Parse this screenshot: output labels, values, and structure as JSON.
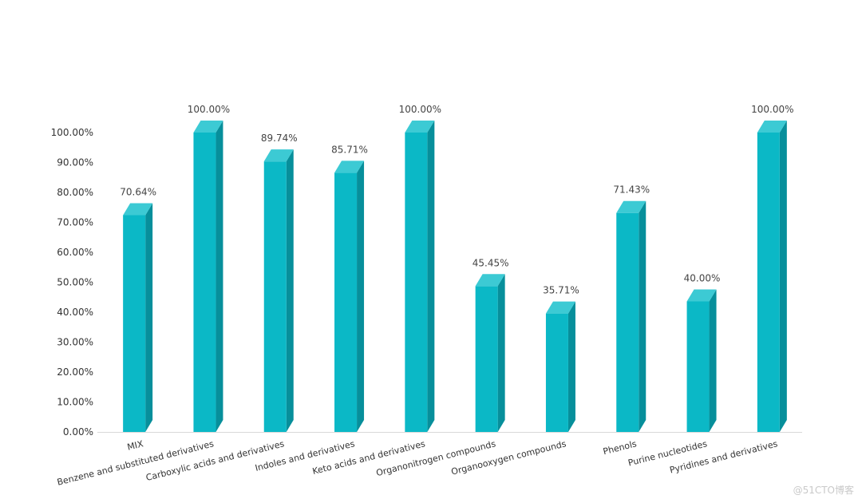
{
  "chart_data": {
    "type": "bar",
    "title": "",
    "xlabel": "",
    "ylabel": "",
    "categories": [
      "MIX",
      "Benzene and substituted derivatives",
      "Carboxylic acids and derivatives",
      "Indoles and derivatives",
      "Keto acids and derivatives",
      "Organonitrogen compounds",
      "Organooxygen compounds",
      "Phenols",
      "Purine nucleotides",
      "Pyridines and derivatives"
    ],
    "values": [
      70.64,
      100.0,
      89.74,
      85.71,
      100.0,
      45.45,
      35.71,
      71.43,
      40.0,
      100.0
    ],
    "data_labels": [
      "70.64%",
      "100.00%",
      "89.74%",
      "85.71%",
      "100.00%",
      "45.45%",
      "35.71%",
      "71.43%",
      "40.00%",
      "100.00%"
    ],
    "y_ticks": [
      "0.00%",
      "10.00%",
      "20.00%",
      "30.00%",
      "40.00%",
      "50.00%",
      "60.00%",
      "70.00%",
      "80.00%",
      "90.00%",
      "100.00%"
    ],
    "ylim": [
      0,
      100
    ],
    "grid": false,
    "style": "3d-column",
    "colors": {
      "front": "#0bb8c6",
      "side": "#078f9b",
      "top": "#3ccad4",
      "axis": "#d9d9d9"
    }
  },
  "watermark": "@51CTO博客"
}
